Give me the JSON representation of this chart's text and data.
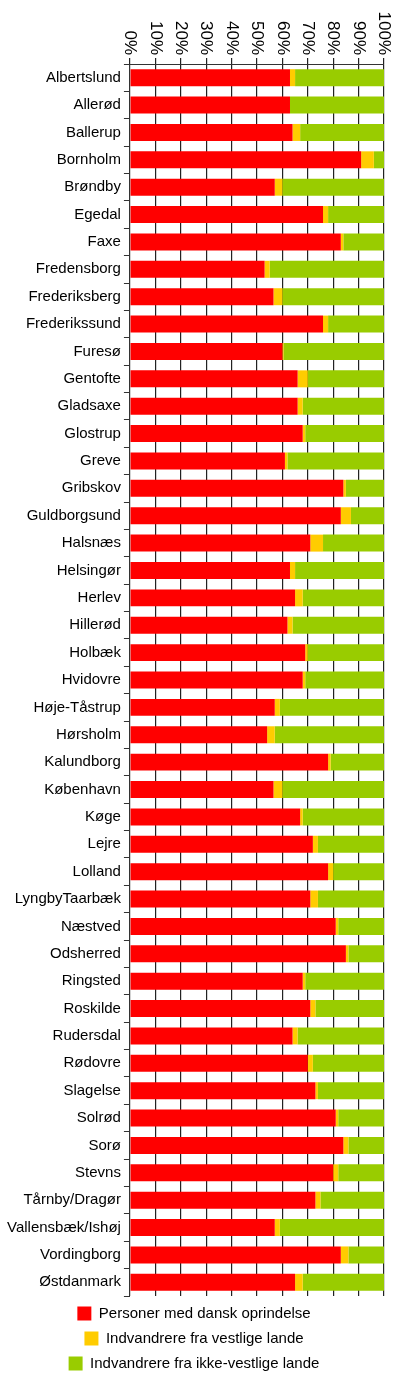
{
  "chart_data": {
    "type": "bar",
    "orientation": "horizontal",
    "stacked": true,
    "categories": [
      "Albertslund",
      "Allerød",
      "Ballerup",
      "Bornholm",
      "Brøndby",
      "Egedal",
      "Faxe",
      "Fredensborg",
      "Frederiksberg",
      "Frederikssund",
      "Furesø",
      "Gentofte",
      "Gladsaxe",
      "Glostrup",
      "Greve",
      "Gribskov",
      "Guldborgsund",
      "Halsnæs",
      "Helsingør",
      "Herlev",
      "Hillerød",
      "Holbæk",
      "Hvidovre",
      "Høje-Tåstrup",
      "Hørsholm",
      "Kalundborg",
      "København",
      "Køge",
      "Lejre",
      "Lolland",
      "LyngbyTaarbæk",
      "Næstved",
      "Odsherred",
      "Ringsted",
      "Roskilde",
      "Rudersdal",
      "Rødovre",
      "Slagelse",
      "Solrød",
      "Sorø",
      "Stevns",
      "Tårnby/Dragør",
      "Vallensbæk/Ishøj",
      "Vordingborg",
      "Østdanmark"
    ],
    "series": [
      {
        "name": "Personer med dansk oprindelse",
        "color": "#ff0000",
        "values": [
          63,
          63,
          64,
          91,
          57,
          76,
          83,
          53,
          56.5,
          76,
          60,
          66,
          66,
          68,
          61,
          84,
          83,
          71,
          63,
          65,
          62,
          69,
          68,
          57,
          54,
          78,
          56.5,
          67,
          72,
          78,
          71,
          81,
          85,
          68,
          71,
          64,
          70,
          73,
          81,
          84,
          80,
          73,
          57,
          83,
          65
        ]
      },
      {
        "name": "Indvandrere fra vestlige lande",
        "color": "#ffcc00",
        "values": [
          2,
          0,
          3,
          5,
          3,
          2,
          1,
          2,
          3.5,
          2,
          0.5,
          4,
          2,
          1,
          1,
          1,
          4,
          5,
          2,
          3,
          2,
          1,
          1,
          2,
          3,
          1,
          3.5,
          1,
          2,
          2,
          3,
          1,
          1,
          1,
          2,
          2,
          2,
          1,
          1,
          2,
          2,
          2,
          2,
          3,
          3
        ]
      },
      {
        "name": "Indvandrere fra ikke-vestlige lande",
        "color": "#99cc00",
        "values": [
          35,
          37,
          33,
          4,
          40,
          22,
          16,
          45,
          40,
          22,
          39.5,
          30,
          32,
          31,
          38,
          15,
          13,
          24,
          35,
          32,
          36,
          30,
          31,
          41,
          43,
          21,
          40,
          32,
          26,
          20,
          26,
          18,
          14,
          31,
          27,
          34,
          28,
          26,
          18,
          14,
          18,
          25,
          41,
          14,
          32
        ]
      }
    ],
    "xlim": [
      0,
      100
    ],
    "xticks": [
      {
        "value": 0,
        "label": "0%"
      },
      {
        "value": 10,
        "label": "10%"
      },
      {
        "value": 20,
        "label": "20%"
      },
      {
        "value": 30,
        "label": "30%"
      },
      {
        "value": 40,
        "label": "40%"
      },
      {
        "value": 50,
        "label": "50%"
      },
      {
        "value": 60,
        "label": "60%"
      },
      {
        "value": 70,
        "label": "70%"
      },
      {
        "value": 80,
        "label": "80%"
      },
      {
        "value": 90,
        "label": "90%"
      },
      {
        "value": 100,
        "label": "100%"
      }
    ],
    "grid": "x",
    "legend": "bottom"
  }
}
